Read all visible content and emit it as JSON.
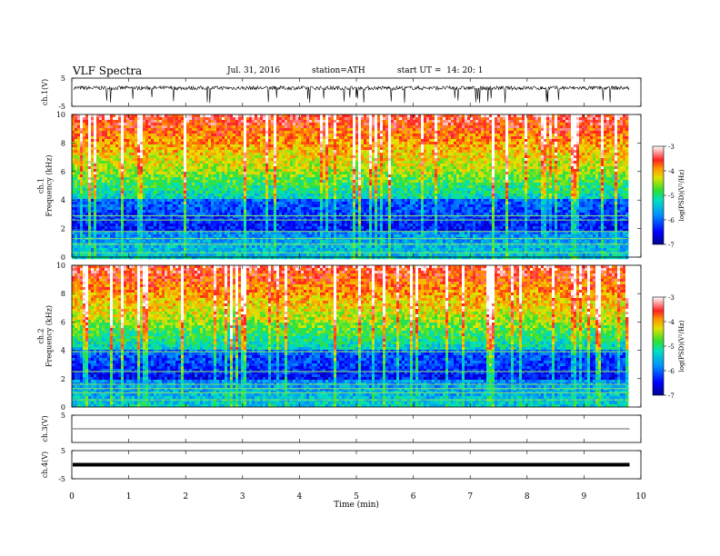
{
  "header": {
    "title": "VLF Spectra",
    "date": "Jul. 31, 2016",
    "station": "station=ATH",
    "start_ut": "start UT =  14: 20: 1"
  },
  "chart_data": [
    {
      "type": "line",
      "panel": "ch1-waveform",
      "ylabel": "ch.1(V)",
      "ylim": [
        -5,
        5
      ],
      "yticks": [
        "5",
        "-5"
      ],
      "xlim": [
        0,
        10
      ],
      "description_values": {
        "baseline_V": 1.5,
        "spike_low_V": -3.5
      }
    },
    {
      "type": "heatmap",
      "panel": "ch1-spectrogram",
      "ylabel": "ch.1\nFrequency (kHz)",
      "ylabel_top": "ch.1",
      "ylabel_bottom": "Frequency (kHz)",
      "ylim": [
        0,
        10
      ],
      "yticks": [
        "0",
        "2",
        "4",
        "6",
        "8",
        "10"
      ],
      "xlim": [
        0,
        9.8
      ],
      "colorbar": {
        "label": "log(PSD)(V²/Hz)",
        "range": [
          -7,
          -3
        ],
        "ticks": [
          "-3",
          "-4",
          "-5",
          "-6",
          "-7"
        ]
      },
      "bands_kHz": [
        0.3,
        0.9,
        1.3,
        1.8,
        2.6,
        2.9
      ]
    },
    {
      "type": "heatmap",
      "panel": "ch2-spectrogram",
      "ylabel_top": "ch.2",
      "ylabel_bottom": "Frequency (kHz)",
      "ylim": [
        0,
        10
      ],
      "yticks": [
        "0",
        "2",
        "4",
        "6",
        "8",
        "10"
      ],
      "xlim": [
        0,
        9.8
      ],
      "colorbar": {
        "label": "log(PSD)(V²/Hz)",
        "range": [
          -7,
          -3
        ],
        "ticks": [
          "-3",
          "-4",
          "-5",
          "-6",
          "-7"
        ]
      },
      "bands_kHz": [
        0.5,
        1.0,
        1.3,
        1.6,
        2.5,
        3.9
      ]
    },
    {
      "type": "line",
      "panel": "ch3-waveform",
      "ylabel": "ch.3(V)",
      "ylim": [
        -5,
        5
      ],
      "yticks": [
        "5"
      ],
      "xlim": [
        0,
        9.8
      ],
      "description_values": {
        "baseline_V": 0
      }
    },
    {
      "type": "line",
      "panel": "ch4-waveform",
      "ylabel": "ch.4(V)",
      "ylim": [
        -5,
        5
      ],
      "yticks": [
        "5",
        "-5"
      ],
      "xlim": [
        0,
        9.8
      ],
      "description_values": {
        "baseline_V": 0
      },
      "xlabel": "Time (min)",
      "xticks": [
        "0",
        "1",
        "2",
        "3",
        "4",
        "5",
        "6",
        "7",
        "8",
        "9",
        "10"
      ]
    }
  ]
}
